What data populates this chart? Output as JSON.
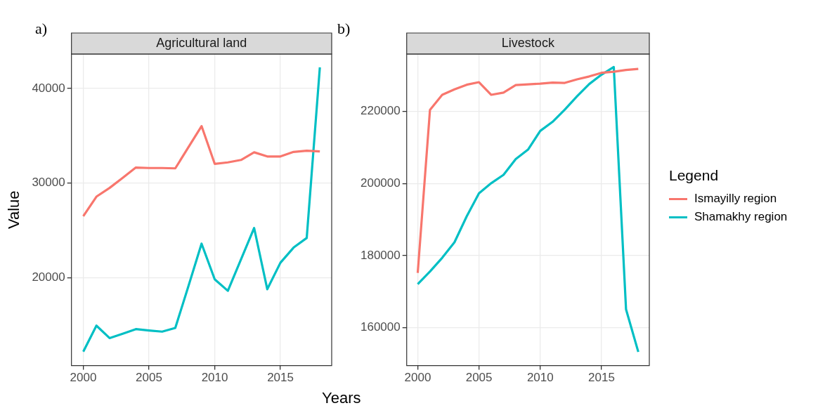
{
  "chart_data": [
    {
      "type": "line",
      "title": "Agricultural land",
      "ylabel": "Value",
      "xlabel": "Years",
      "annotations": [
        "a)"
      ],
      "x": [
        2000,
        2001,
        2002,
        2003,
        2004,
        2005,
        2006,
        2007,
        2008,
        2009,
        2010,
        2011,
        2012,
        2013,
        2014,
        2015,
        2016,
        2017,
        2018
      ],
      "xlim": [
        1999.1,
        2018.9
      ],
      "xticks": [
        2000,
        2005,
        2010,
        2015
      ],
      "ylim": [
        10700,
        43650
      ],
      "yticks": [
        20000,
        30000,
        40000
      ],
      "grid": true,
      "legend": false,
      "marker": "none",
      "line_style": "solid",
      "series": [
        {
          "color": "#f8766d",
          "values": [
            26500,
            28570,
            29490,
            30560,
            31650,
            31600,
            31600,
            31560,
            33800,
            36030,
            32040,
            32190,
            32450,
            33260,
            32820,
            32820,
            33300,
            33430,
            33350
          ]
        },
        {
          "color": "#00bfc4",
          "values": [
            12180,
            14920,
            13610,
            14070,
            14560,
            14410,
            14290,
            14680,
            19100,
            23600,
            19830,
            18610,
            21940,
            25250,
            18780,
            21580,
            23180,
            24200,
            42240
          ]
        }
      ]
    },
    {
      "type": "line",
      "title": "Livestock",
      "legend_title": "Legend",
      "annotations": [
        "b)"
      ],
      "x": [
        2000,
        2001,
        2002,
        2003,
        2004,
        2005,
        2006,
        2007,
        2008,
        2009,
        2010,
        2011,
        2012,
        2013,
        2014,
        2015,
        2016,
        2017,
        2018
      ],
      "xlim": [
        1999.1,
        2018.9
      ],
      "xticks": [
        2000,
        2005,
        2010,
        2015
      ],
      "ylim": [
        149500,
        235900
      ],
      "yticks": [
        160000,
        180000,
        200000,
        220000
      ],
      "grid": true,
      "legend": "right",
      "marker": "none",
      "line_style": "solid",
      "series": [
        {
          "name": "Ismayilly region",
          "color": "#f8766d",
          "values": [
            175200,
            220400,
            224600,
            226100,
            227400,
            228100,
            224600,
            225200,
            227300,
            227500,
            227700,
            228000,
            227900,
            228900,
            229700,
            230700,
            231000,
            231500,
            231800
          ]
        },
        {
          "name": "Shamakhy region",
          "color": "#00bfc4",
          "values": [
            172100,
            175600,
            179400,
            183700,
            190900,
            197300,
            200100,
            202400,
            206800,
            209400,
            214600,
            217100,
            220500,
            224200,
            227600,
            230200,
            232300,
            165100,
            153300
          ]
        }
      ]
    }
  ]
}
